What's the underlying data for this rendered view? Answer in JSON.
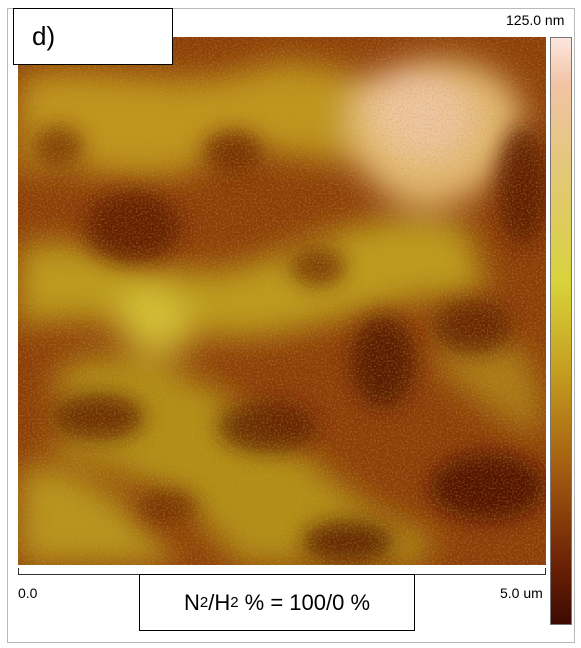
{
  "panel_label": "d)",
  "scale_max_label": "125.0 nm",
  "x_axis_min_label": "0.0",
  "x_axis_max_label": "5.0 um",
  "condition": {
    "n": "N",
    "n_sub": "2",
    "slash": "/H",
    "h_sub": "2",
    "rest": " % = 100/0 %"
  },
  "colors": {
    "low": "#3d0a02",
    "mid_dark": "#8c360a",
    "mid": "#c39a1e",
    "high": "#d8d23a",
    "peak": "#f1c3a4"
  }
}
